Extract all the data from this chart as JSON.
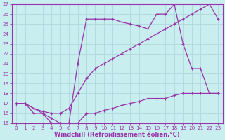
{
  "bg_color": "#c8eef0",
  "grid_color": "#b0d8dc",
  "line_color": "#9933aa",
  "xlabel": "Windchill (Refroidissement éolien,°C)",
  "xlabel_color": "#9933aa",
  "tick_color": "#9933aa",
  "spine_color": "#9933aa",
  "xlim": [
    -0.5,
    23.5
  ],
  "ylim": [
    15,
    27
  ],
  "yticks": [
    15,
    16,
    17,
    18,
    19,
    20,
    21,
    22,
    23,
    24,
    25,
    26,
    27
  ],
  "xticks": [
    0,
    1,
    2,
    3,
    4,
    5,
    6,
    7,
    8,
    9,
    10,
    11,
    12,
    13,
    14,
    15,
    16,
    17,
    18,
    19,
    20,
    21,
    22,
    23
  ],
  "line1_x": [
    0,
    1,
    2,
    3,
    4,
    5,
    6,
    7,
    8,
    9,
    10,
    11,
    12,
    13,
    14,
    15,
    16,
    17,
    18,
    19,
    20,
    21,
    22,
    23
  ],
  "line1_y": [
    17,
    17,
    16,
    16,
    15,
    15,
    15,
    15,
    16,
    16,
    16.3,
    16.5,
    16.8,
    17,
    17.2,
    17.5,
    17.5,
    17.5,
    17.8,
    18,
    18,
    18,
    18,
    18
  ],
  "line2_x": [
    0,
    1,
    2,
    3,
    4,
    5,
    6,
    7,
    8,
    9,
    10,
    11,
    12,
    13,
    14,
    15,
    16,
    17,
    18,
    19,
    20,
    21,
    22,
    23
  ],
  "line2_y": [
    17,
    17,
    16.5,
    16.2,
    16,
    16,
    16.5,
    18,
    19.5,
    20.5,
    21,
    21.5,
    22,
    22.5,
    23,
    23.5,
    24,
    24.5,
    25,
    25.5,
    26,
    26.5,
    27,
    25.5
  ],
  "line3_x": [
    0,
    1,
    2,
    3,
    4,
    5,
    6,
    7,
    8,
    9,
    10,
    11,
    12,
    13,
    14,
    15,
    16,
    17,
    18,
    19,
    20,
    21,
    22,
    23
  ],
  "line3_y": [
    17,
    17,
    16.5,
    16,
    15.5,
    15,
    15,
    21,
    25.5,
    25.5,
    25.5,
    25.5,
    25.2,
    25,
    24.8,
    24.5,
    26,
    26,
    27,
    23,
    20.5,
    20.5,
    18,
    18
  ],
  "marker_size": 3.0,
  "linewidth": 0.9,
  "tick_fontsize": 5.2,
  "xlabel_fontsize": 6.0
}
